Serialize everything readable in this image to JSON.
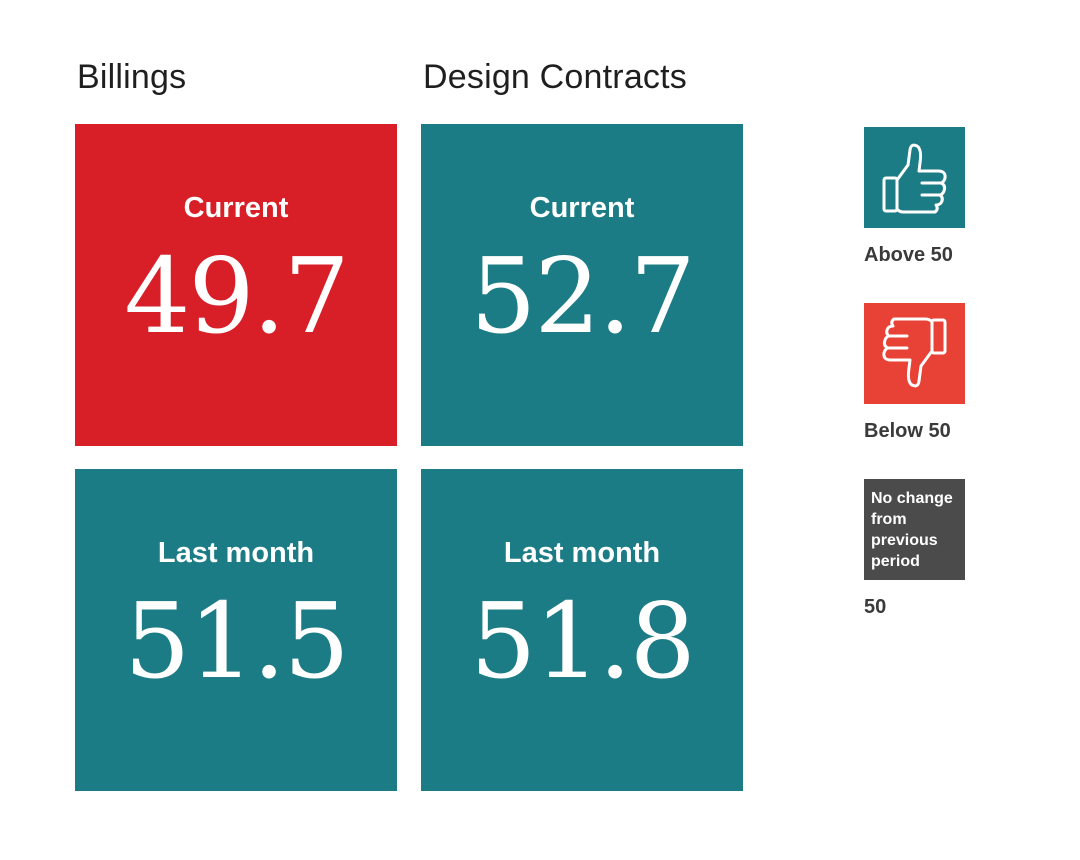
{
  "chart_data": {
    "type": "table",
    "threshold": 50,
    "columns": [
      {
        "title": "Billings",
        "rows": [
          {
            "period": "Current",
            "value": 49.7,
            "display": "49.7",
            "status": "below"
          },
          {
            "period": "Last month",
            "value": 51.5,
            "display": "51.5",
            "status": "above"
          }
        ]
      },
      {
        "title": "Design Contracts",
        "rows": [
          {
            "period": "Current",
            "value": 52.7,
            "display": "52.7",
            "status": "above"
          },
          {
            "period": "Last month",
            "value": 51.8,
            "display": "51.8",
            "status": "above"
          }
        ]
      }
    ],
    "legend": [
      {
        "key": "above",
        "label": "Above 50",
        "icon": "thumbs-up-icon",
        "color": "#1c7c86"
      },
      {
        "key": "below",
        "label": "Below 50",
        "icon": "thumbs-down-icon",
        "color": "#e84136"
      },
      {
        "key": "nochange",
        "box_text": "No change from previous period",
        "label": "50",
        "color": "#4b4b4b"
      }
    ],
    "tile_colors": {
      "above": "#1c7c86",
      "below": "#d81e27"
    }
  }
}
